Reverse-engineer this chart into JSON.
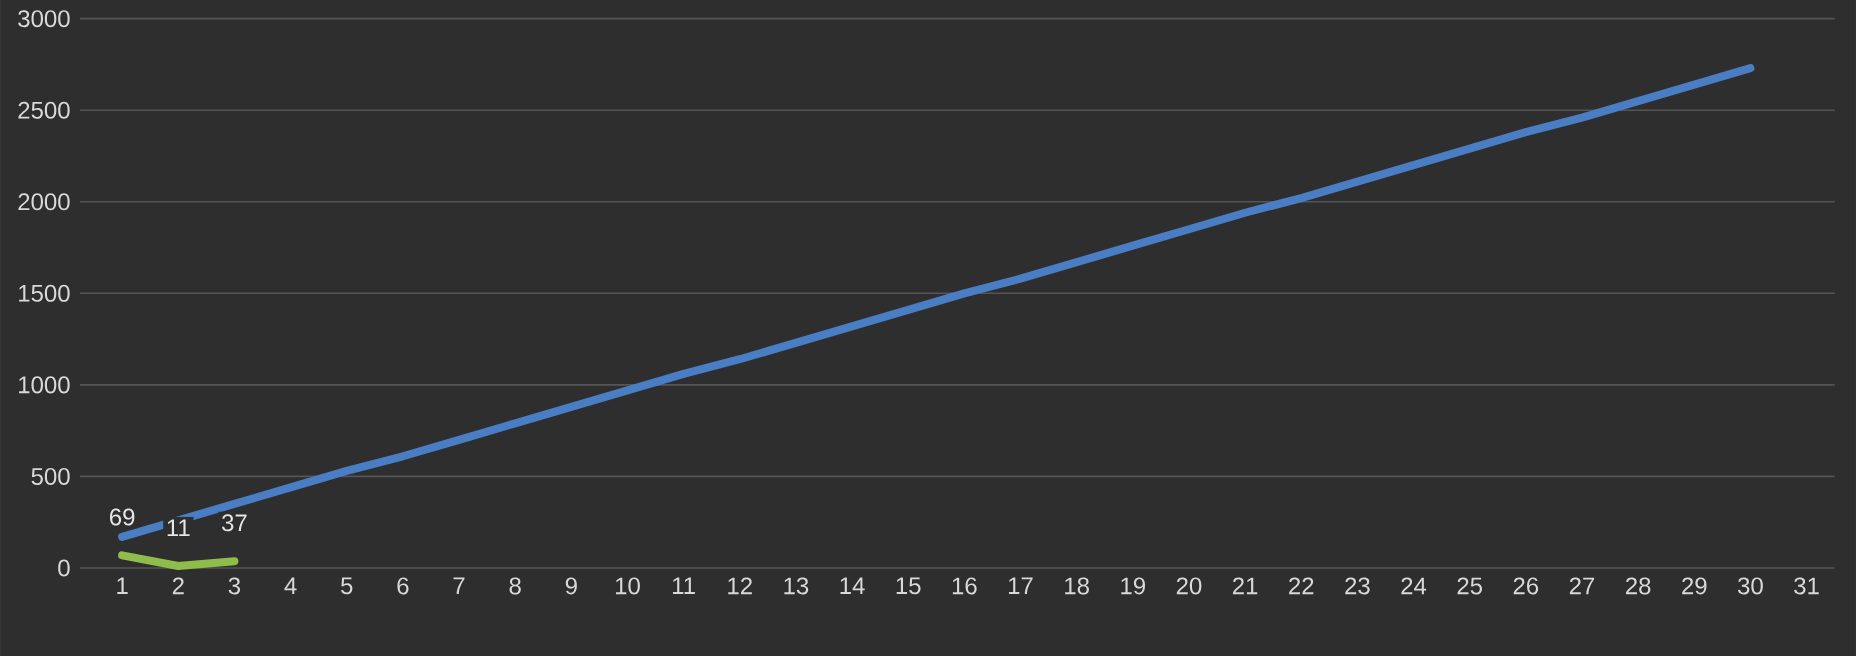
{
  "chart_data": {
    "type": "line",
    "categories": [
      "1",
      "2",
      "3",
      "4",
      "5",
      "6",
      "7",
      "8",
      "9",
      "10",
      "11",
      "12",
      "13",
      "14",
      "15",
      "16",
      "17",
      "18",
      "19",
      "20",
      "21",
      "22",
      "23",
      "24",
      "25",
      "26",
      "27",
      "28",
      "29",
      "30",
      "31"
    ],
    "series": [
      {
        "color": "#4a7ec4",
        "values": [
          170,
          260,
          350,
          440,
          530,
          610,
          700,
          790,
          880,
          970,
          1060,
          1140,
          1230,
          1320,
          1410,
          1500,
          1580,
          1670,
          1760,
          1850,
          1940,
          2020,
          2110,
          2200,
          2290,
          2380,
          2460,
          2550,
          2640,
          2730,
          null
        ]
      },
      {
        "color": "#8fbc4a",
        "values": [
          69,
          11,
          37,
          null,
          null,
          null,
          null,
          null,
          null,
          null,
          null,
          null,
          null,
          null,
          null,
          null,
          null,
          null,
          null,
          null,
          null,
          null,
          null,
          null,
          null,
          null,
          null,
          null,
          null,
          null,
          null
        ],
        "value_labels": [
          "69",
          "11",
          "37",
          null,
          null,
          null,
          null,
          null,
          null,
          null,
          null,
          null,
          null,
          null,
          null,
          null,
          null,
          null,
          null,
          null,
          null,
          null,
          null,
          null,
          null,
          null,
          null,
          null,
          null,
          null,
          null
        ]
      }
    ],
    "ylim": [
      0,
      3000
    ],
    "yticks": [
      0,
      500,
      1000,
      1500,
      2000,
      2500,
      3000
    ],
    "grid": "y",
    "marker": "none",
    "line_style": "solid"
  }
}
